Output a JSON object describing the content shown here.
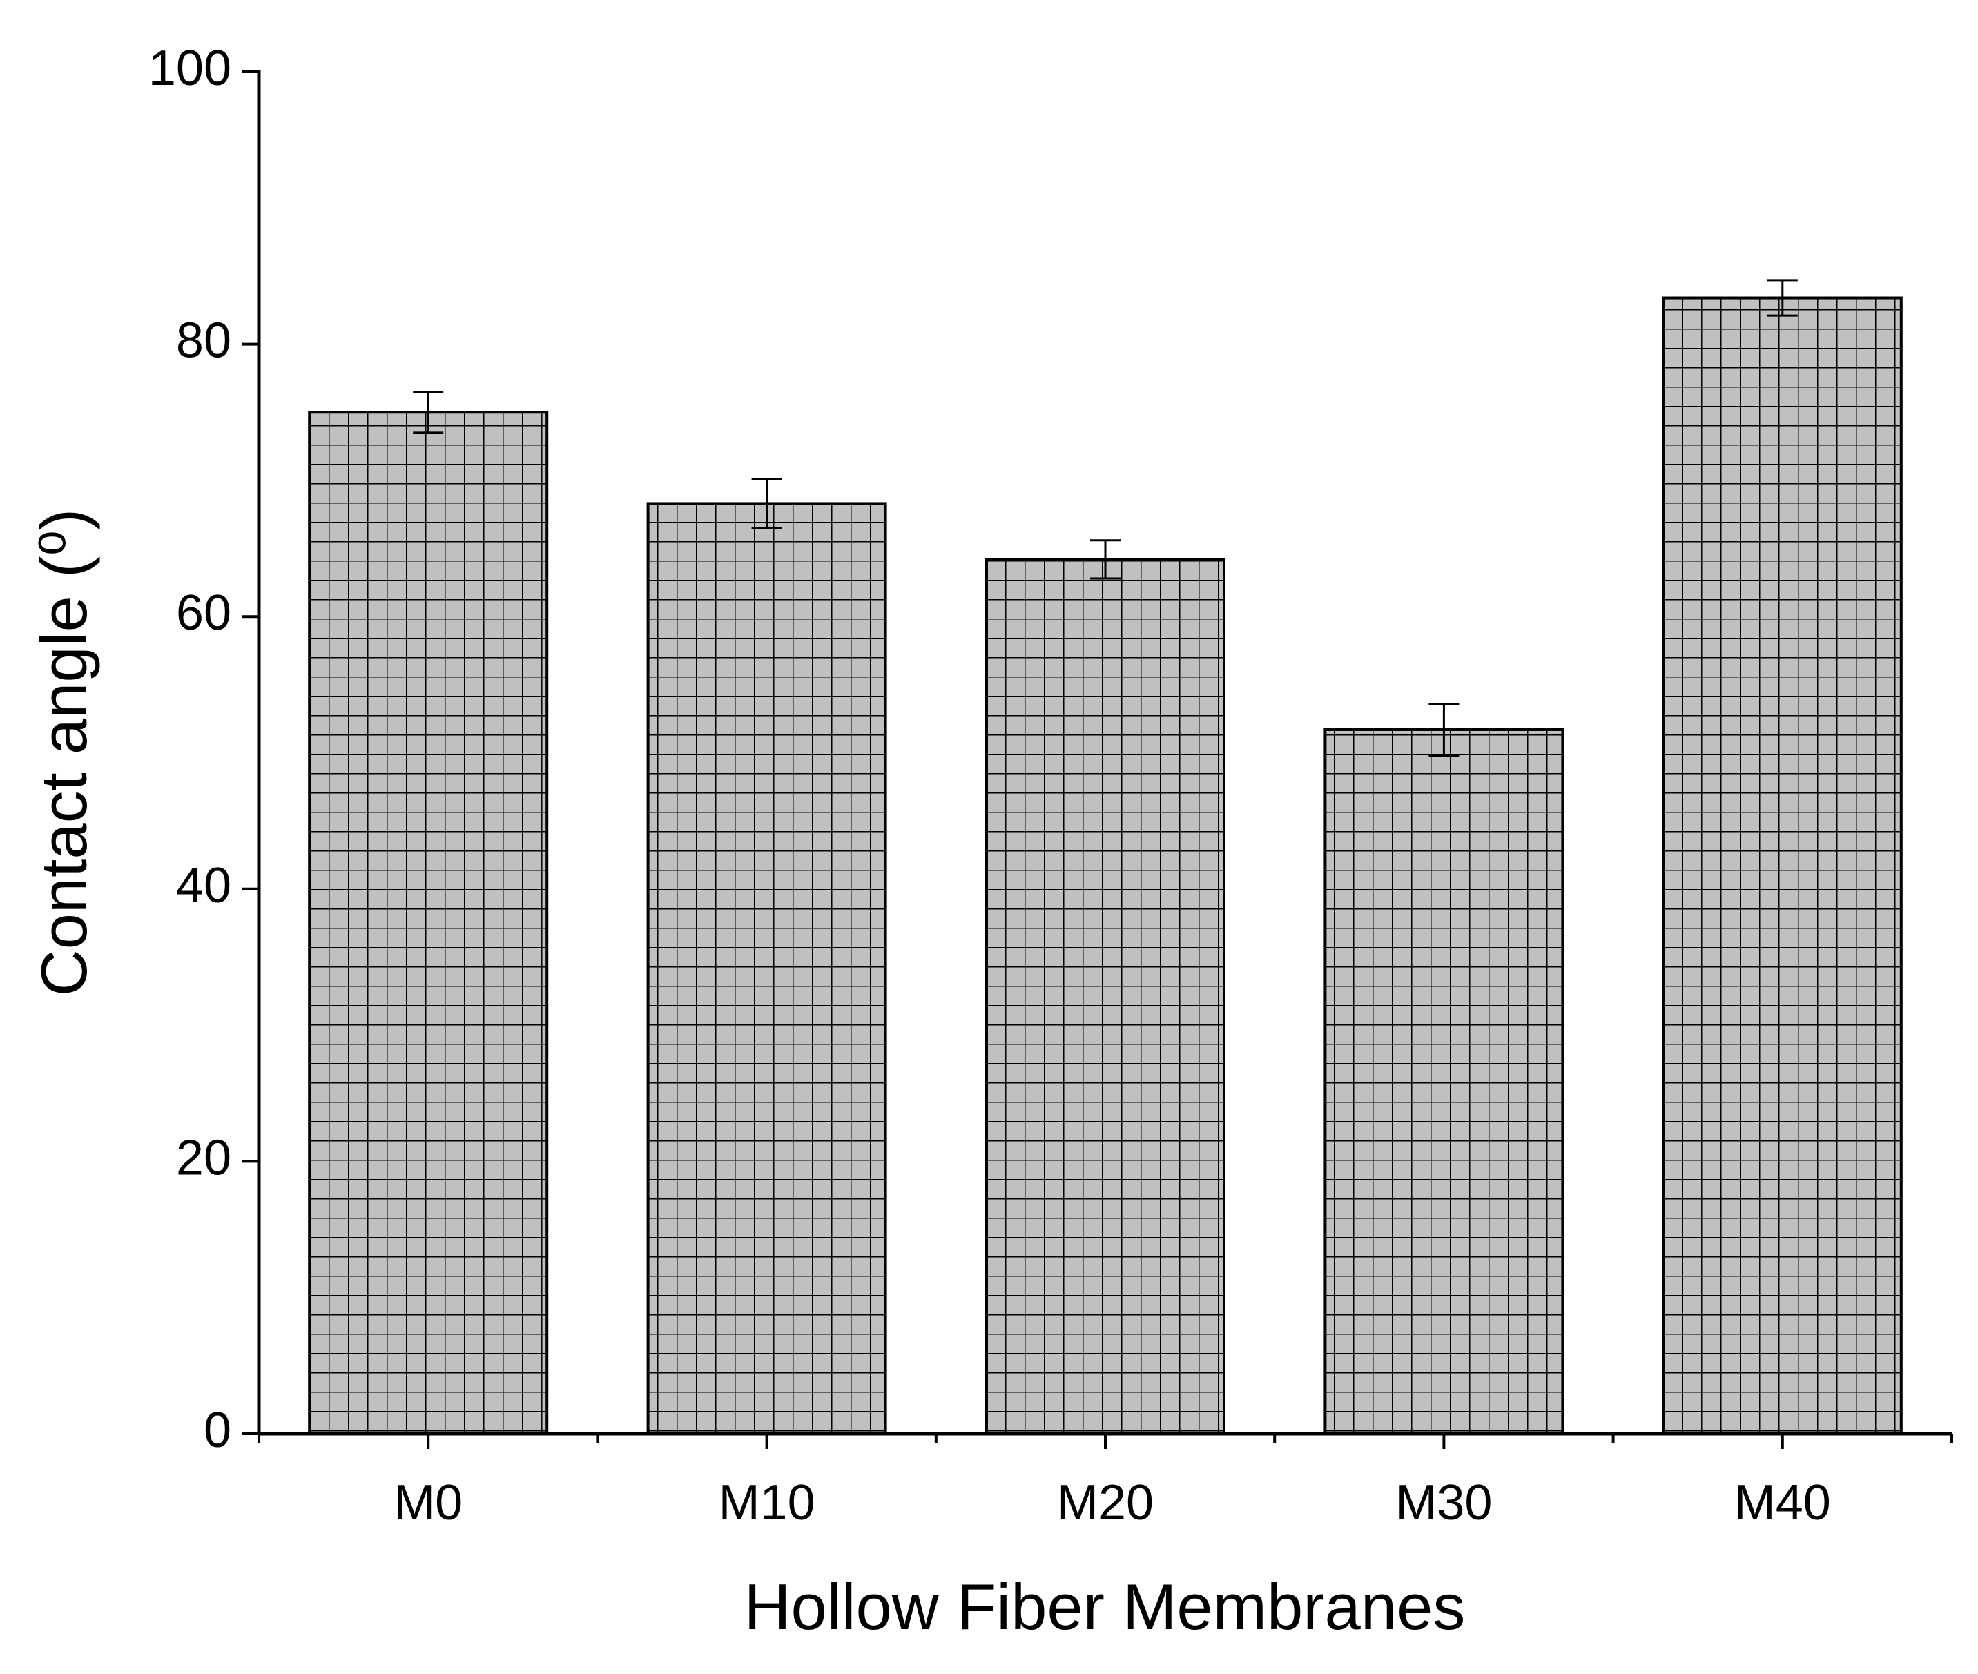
{
  "chart_data": {
    "type": "bar",
    "x_label": "Hollow Fiber Membranes",
    "y_label": "Contact angle (⁰)",
    "categories": [
      "M0",
      "M10",
      "M20",
      "M30",
      "M40"
    ],
    "values": [
      75,
      68.3,
      64.2,
      51.7,
      83.4
    ],
    "errors": [
      1.5,
      1.8,
      1.4,
      1.9,
      1.3
    ],
    "color": "#c0c0c0",
    "ylim": [
      0,
      100
    ],
    "yticks": [
      0,
      20,
      40,
      60,
      80,
      100
    ]
  }
}
